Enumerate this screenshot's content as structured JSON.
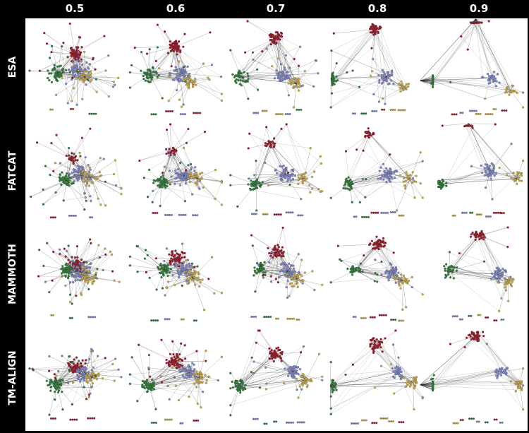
{
  "columns": [
    "0.5",
    "0.6",
    "0.7",
    "0.8",
    "0.9"
  ],
  "rows": [
    "ESA",
    "FATCAT",
    "MAMMOTH",
    "TM-ALIGN"
  ],
  "colors": {
    "red": "#9e1a2b",
    "green": "#2e7d3a",
    "blue": "#7f86c9",
    "yellow": "#c7a94a",
    "edge": "#222222"
  }
}
